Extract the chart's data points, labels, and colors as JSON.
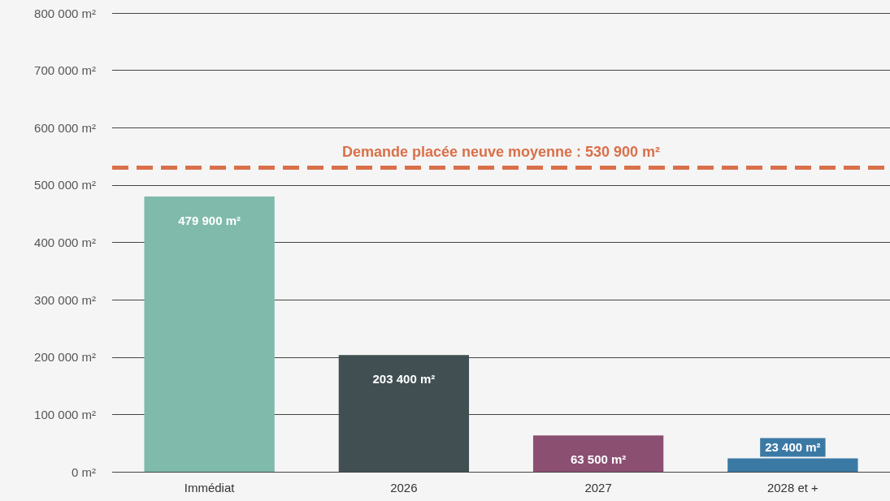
{
  "chart_data": {
    "type": "bar",
    "categories": [
      "Immédiat",
      "2026",
      "2027",
      "2028 et +"
    ],
    "values": [
      479900,
      203400,
      63500,
      23400
    ],
    "colors": [
      "#7fbaab",
      "#414f52",
      "#8b4f72",
      "#3b79a5"
    ],
    "value_labels": [
      "479 900 m²",
      "203 400 m²",
      "63 500 m²",
      "23 400 m²"
    ],
    "ylim": [
      0,
      800000
    ],
    "yticks": [
      {
        "value": 0,
        "label": "0 m²"
      },
      {
        "value": 100000,
        "label": "100 000 m²"
      },
      {
        "value": 200000,
        "label": "200 000 m²"
      },
      {
        "value": 300000,
        "label": "300 000 m²"
      },
      {
        "value": 400000,
        "label": "400 000 m²"
      },
      {
        "value": 500000,
        "label": "500 000 m²"
      },
      {
        "value": 600000,
        "label": "600 000 m²"
      },
      {
        "value": 700000,
        "label": "700 000 m²"
      },
      {
        "value": 800000,
        "label": "800 000 m²"
      }
    ],
    "ref_lines": [
      {
        "axis": "y",
        "value": 530900,
        "label": "Demande placée neuve moyenne : 530 900 m²",
        "color": "#d9704a",
        "line_style": "dashed"
      }
    ],
    "grid": "y"
  }
}
